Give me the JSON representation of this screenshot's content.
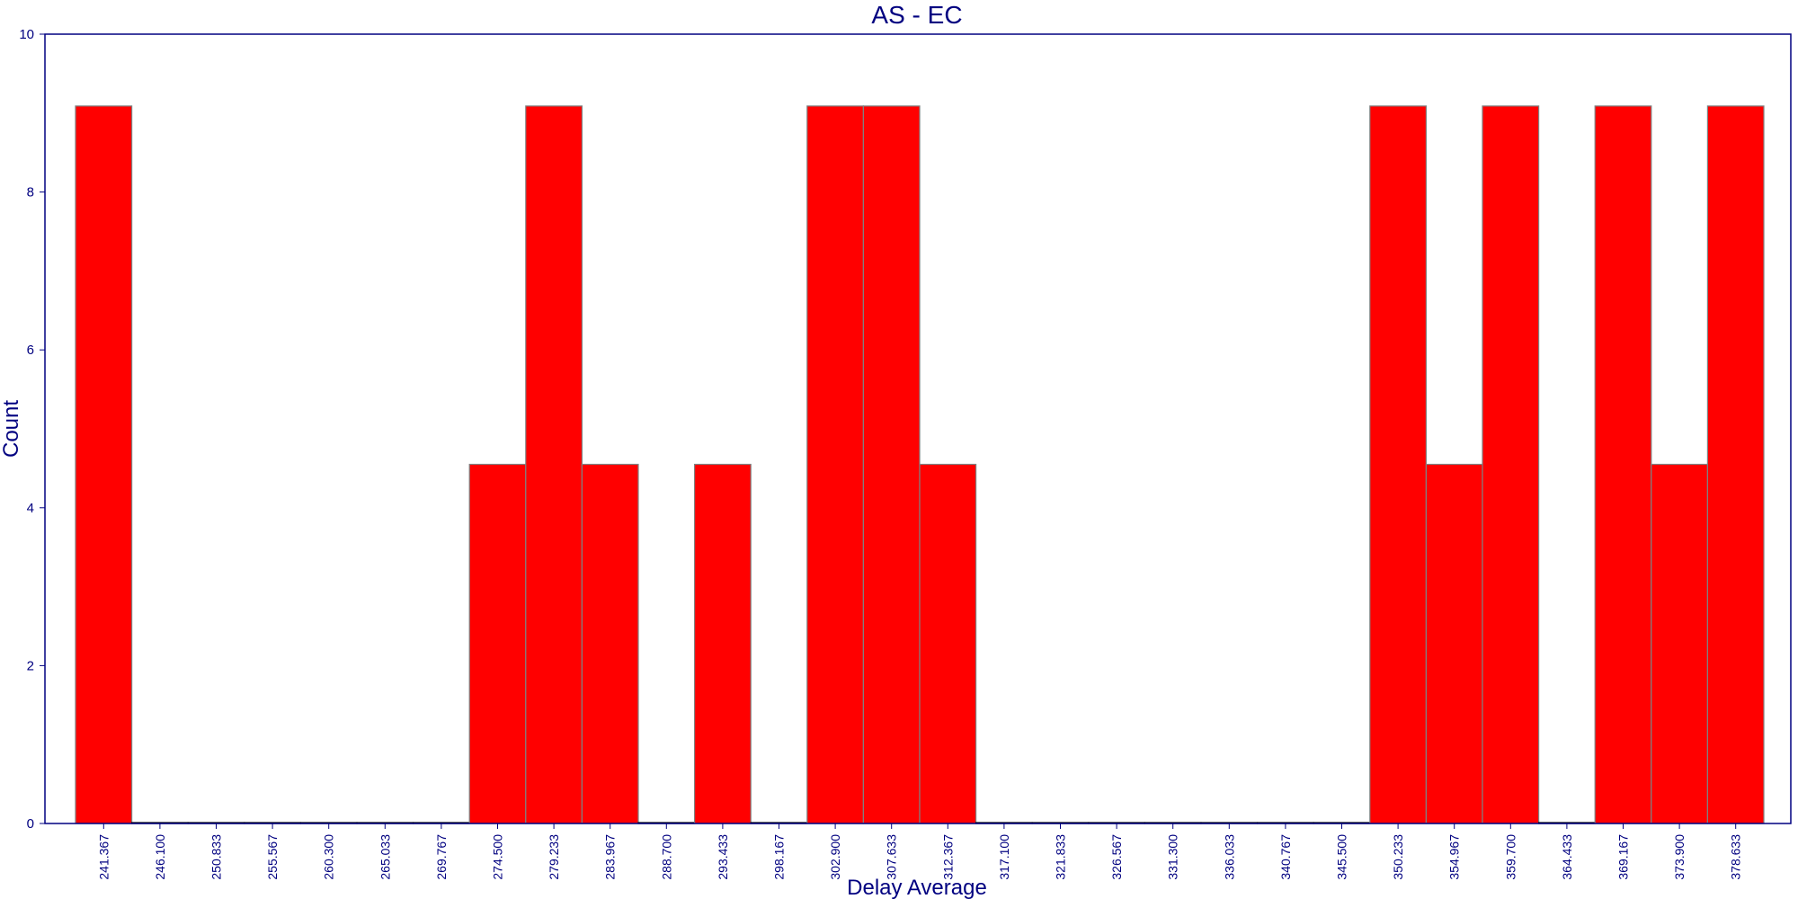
{
  "chart_data": {
    "type": "bar",
    "title": "AS - EC",
    "xlabel": "Delay Average",
    "ylabel": "Count",
    "ylim": [
      0,
      10
    ],
    "yticks": [
      "0",
      "2",
      "4",
      "6",
      "8",
      "10"
    ],
    "categories": [
      "241.367",
      "246.100",
      "250.833",
      "255.567",
      "260.300",
      "265.033",
      "269.767",
      "274.500",
      "279.233",
      "283.967",
      "288.700",
      "293.433",
      "298.167",
      "302.900",
      "307.633",
      "312.367",
      "317.100",
      "321.833",
      "326.567",
      "331.300",
      "336.033",
      "340.767",
      "345.500",
      "350.233",
      "354.967",
      "359.700",
      "364.433",
      "369.167",
      "373.900",
      "378.633"
    ],
    "values": [
      9.09,
      0,
      0,
      0,
      0,
      0,
      0,
      4.55,
      9.09,
      4.55,
      0,
      4.55,
      0,
      9.09,
      9.09,
      4.55,
      0,
      0,
      0,
      0,
      0,
      0,
      0,
      9.09,
      4.55,
      9.09,
      0,
      9.09,
      4.55,
      9.09
    ],
    "grid": false,
    "legend": "none"
  },
  "colors": {
    "bar_fill": "#ff0000",
    "bar_stroke": "#808080",
    "axis": "#000080",
    "text": "#000080"
  }
}
